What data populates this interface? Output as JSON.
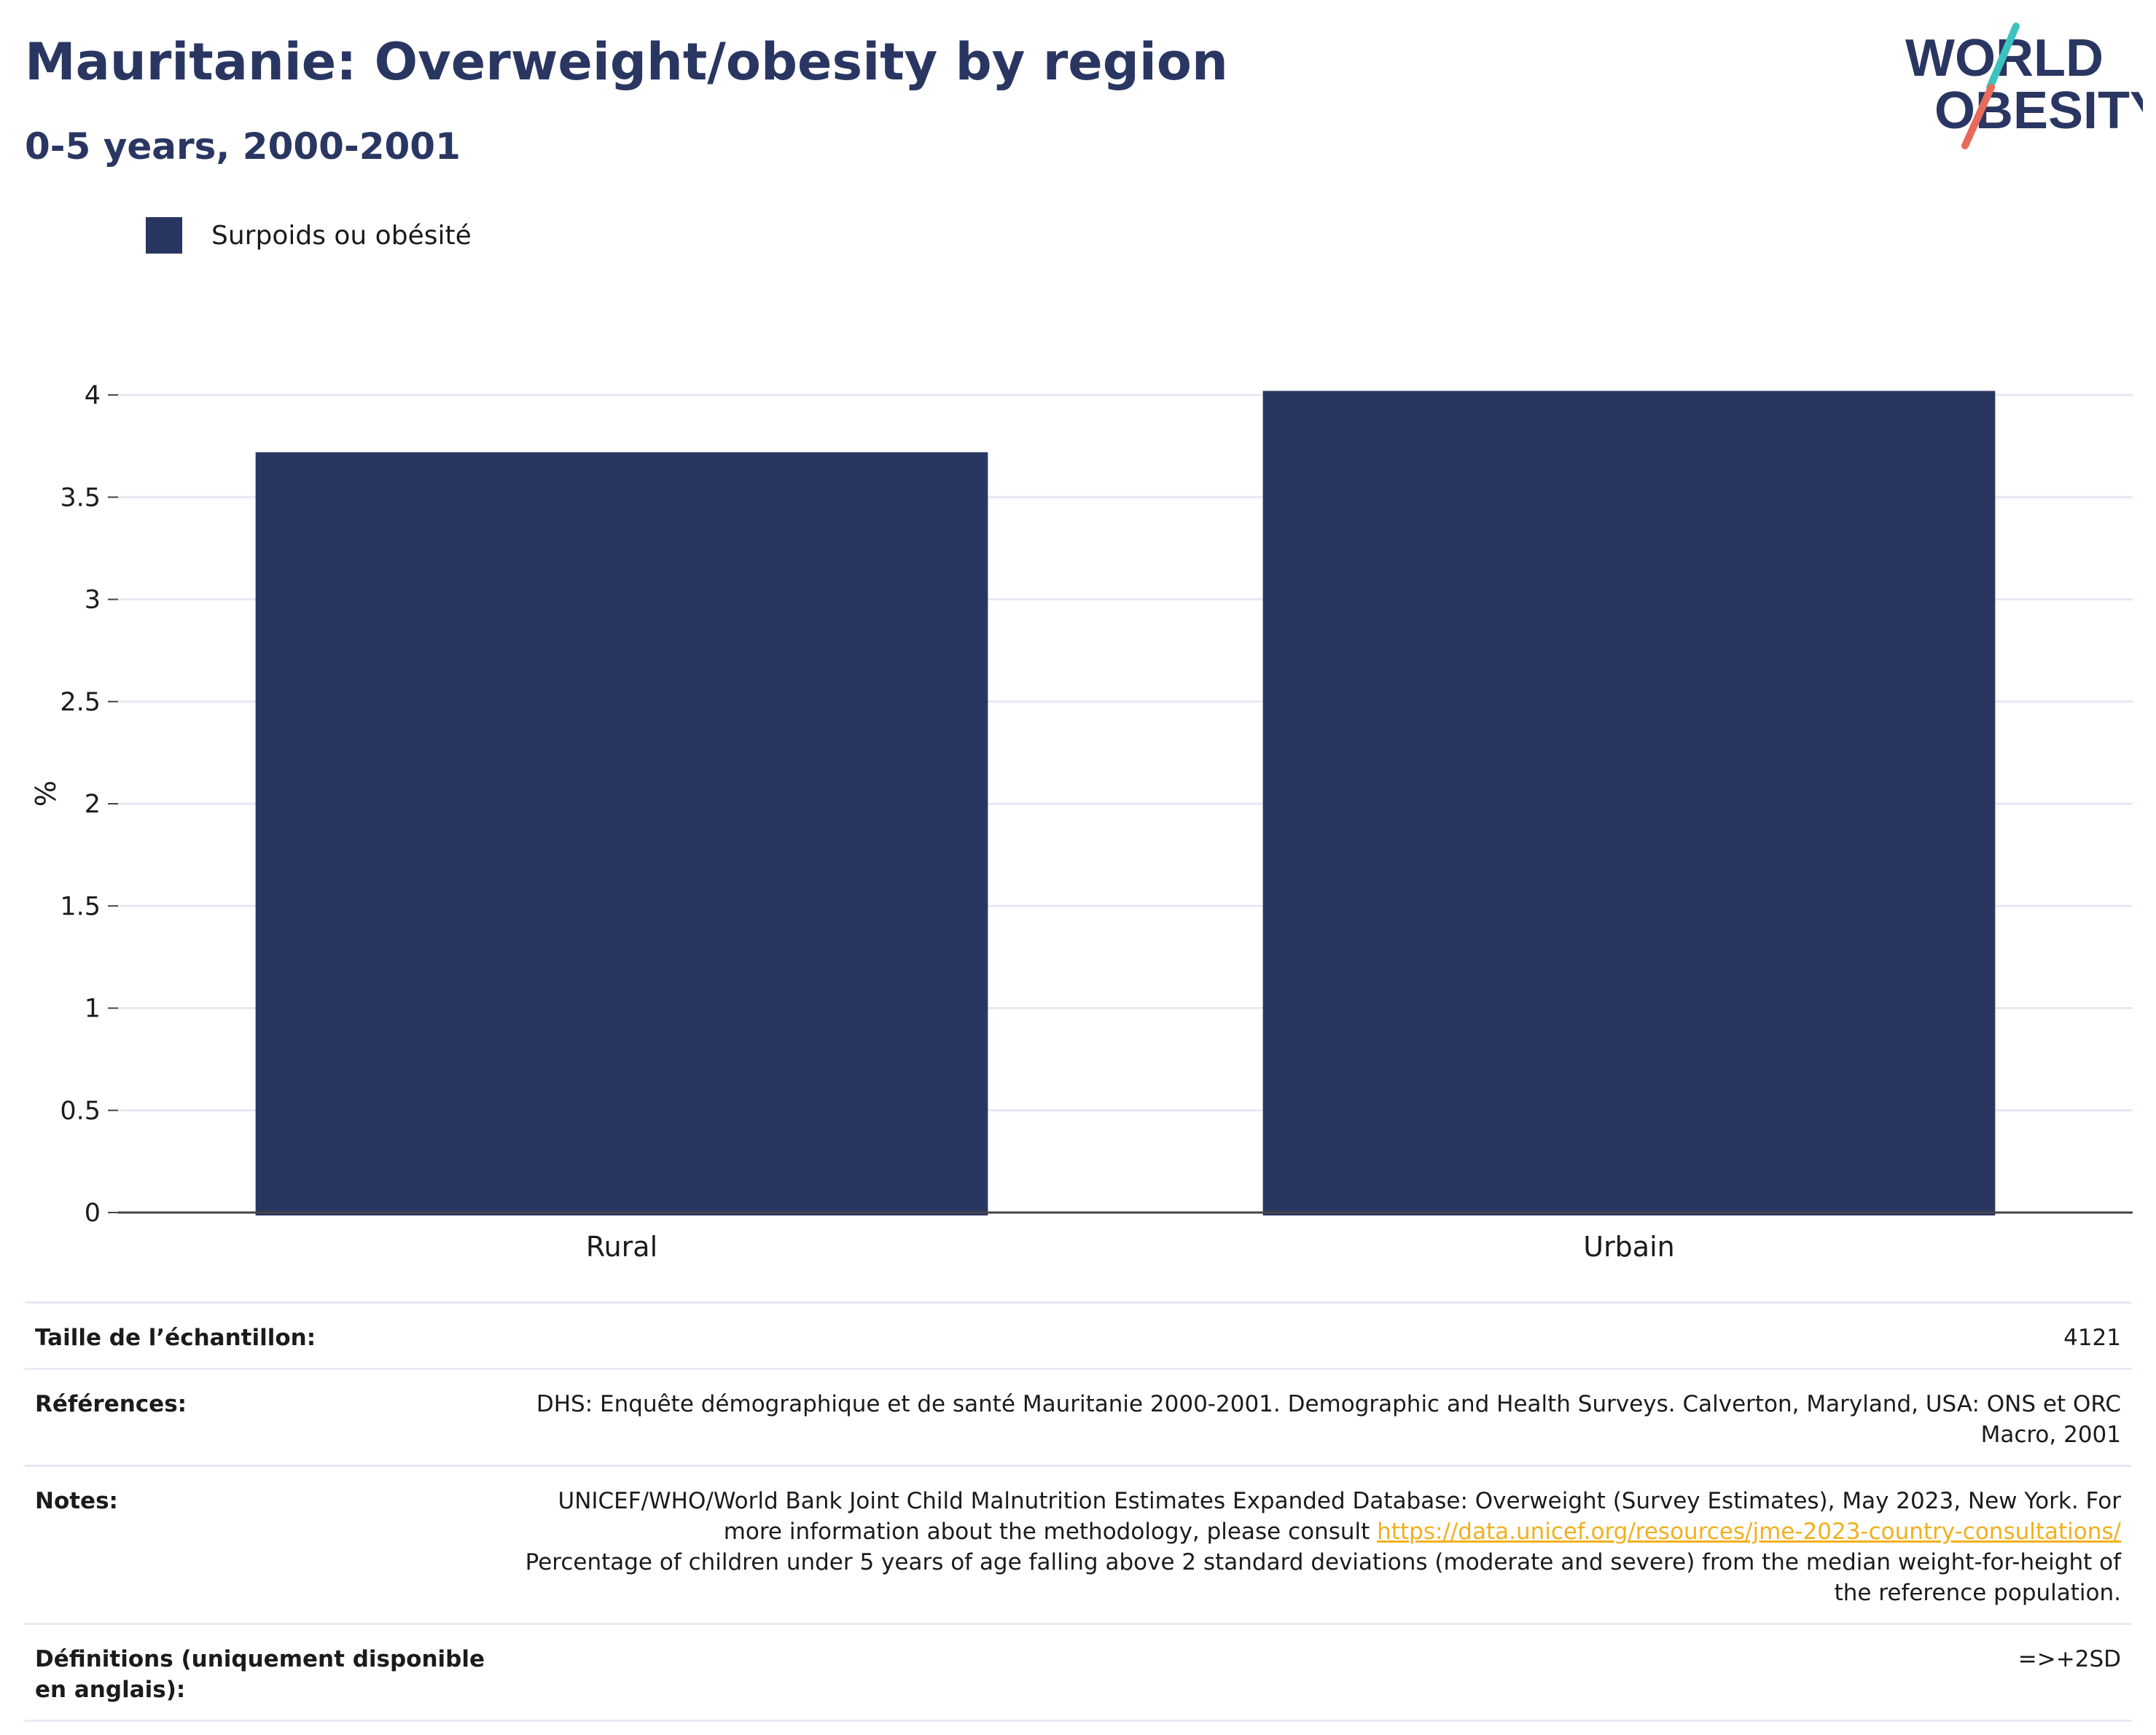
{
  "header": {
    "title": "Mauritanie: Overweight/obesity by region",
    "subtitle": "0-5 years, 2000-2001"
  },
  "logo": {
    "line1": "WORLD",
    "line2": "OBESITY"
  },
  "colors": {
    "bar": "#2a3662",
    "title": "#2a3662",
    "grid": "#e6e9f2",
    "axis": "#444444",
    "link": "#f2b01e",
    "logo_teal": "#3ec2c0",
    "logo_coral": "#e86a5a"
  },
  "chart_data": {
    "type": "bar",
    "categories": [
      "Rural",
      "Urbain"
    ],
    "series": [
      {
        "name": "Surpoids ou obésité",
        "values": [
          3.72,
          4.02
        ]
      }
    ],
    "ylabel": "%",
    "xlabel": "",
    "ylim": [
      0,
      4.1
    ],
    "yticks": [
      0,
      0.5,
      1,
      1.5,
      2,
      2.5,
      3,
      3.5,
      4
    ],
    "ytick_labels": [
      "0",
      "0.5",
      "1",
      "1.5",
      "2",
      "2.5",
      "3",
      "3.5",
      "4"
    ],
    "grid": true,
    "legend": "top-left"
  },
  "info": {
    "sample_label": "Taille de l’échantillon:",
    "sample_value": "4121",
    "references_label": "Références:",
    "references_value": "DHS: Enquête démographique et de santé Mauritanie 2000-2001. Demographic and Health Surveys. Calverton, Maryland, USA: ONS et ORC Macro, 2001",
    "notes_label": "Notes:",
    "notes_text_1": "UNICEF/WHO/World Bank Joint Child Malnutrition Estimates Expanded Database: Overweight (Survey Estimates), May 2023, New York. For more information about the methodology, please consult ",
    "notes_link": "https://data.unicef.org/resources/jme-2023-country-consultations/",
    "notes_text_2": "Percentage of children under 5 years of age falling above 2 standard deviations (moderate and severe) from the median weight-for-height of the reference population.",
    "definitions_label": "Définitions (uniquement disponible en anglais):",
    "definitions_value": "=>+2SD"
  }
}
